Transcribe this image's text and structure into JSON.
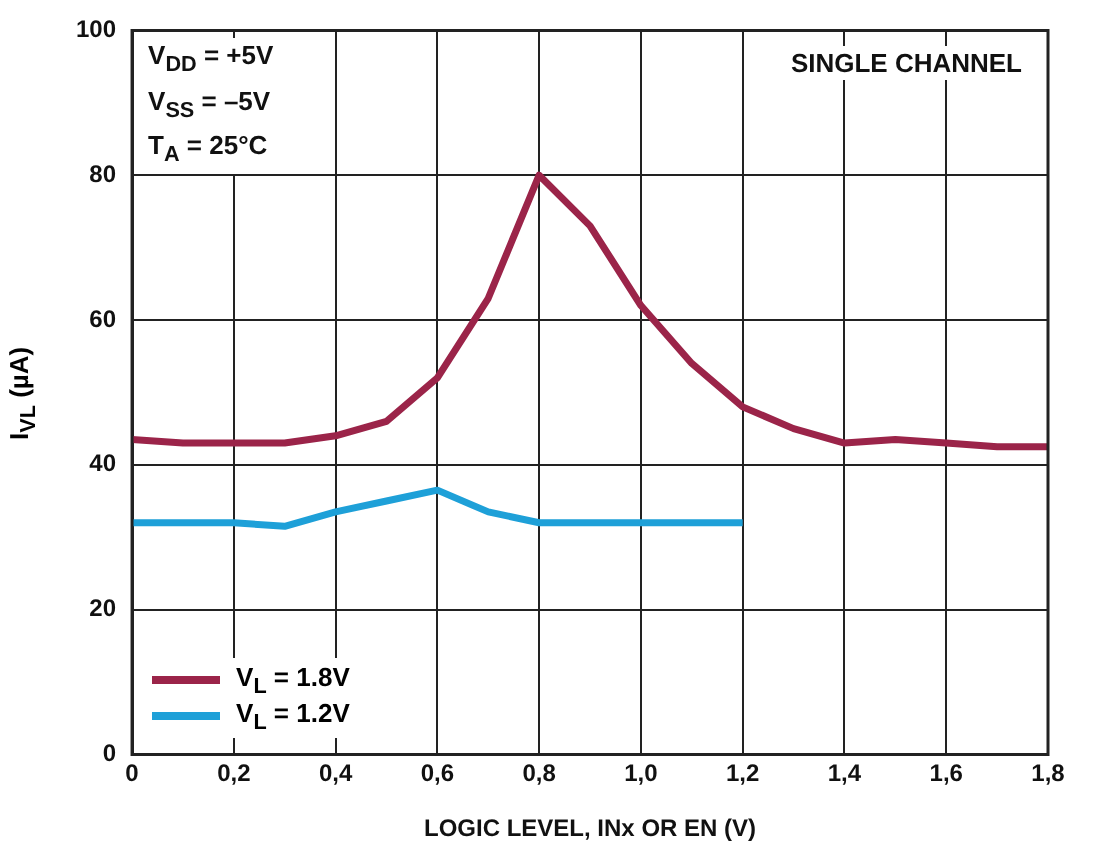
{
  "chart_data": {
    "type": "line",
    "xlabel": "LOGIC LEVEL, INx OR EN (V)",
    "ylabel": "I$_{VL}$ (µA)",
    "annotations": [
      "V$_{DD}$ = +5V\nV$_{SS}$ = –5V\nT$_{A}$ = 25°C",
      "SINGLE CHANNEL"
    ],
    "xlim": [
      0,
      1.8
    ],
    "xticks": [
      0,
      {
        "value": 0.2,
        "label": "0,2"
      },
      {
        "value": 0.4,
        "label": "0,4"
      },
      {
        "value": 0.6,
        "label": "0,6"
      },
      {
        "value": 0.8,
        "label": "0,8"
      },
      {
        "value": 1.0,
        "label": "1,0"
      },
      {
        "value": 1.2,
        "label": "1,2"
      },
      {
        "value": 1.4,
        "label": "1,4"
      },
      {
        "value": 1.6,
        "label": "1,6"
      },
      {
        "value": 1.8,
        "label": "1,8"
      }
    ],
    "ylim": [
      0,
      100
    ],
    "yticks": [
      0,
      20,
      40,
      60,
      80,
      100
    ],
    "grid": true,
    "legend": "bottom left",
    "marker": "none",
    "line_style": "solid",
    "series": [
      {
        "name": "V$_{L}$ = 1.8V",
        "color": "#9b2449",
        "x": [
          0,
          0.1,
          0.2,
          0.3,
          0.4,
          0.5,
          0.6,
          0.7,
          0.8,
          0.9,
          1.0,
          1.1,
          1.2,
          1.3,
          1.4,
          1.5,
          1.6,
          1.7,
          1.8
        ],
        "values": [
          43.5,
          43,
          43,
          43,
          44,
          46,
          52,
          63,
          80,
          73,
          62,
          54,
          48,
          45,
          43,
          43.5,
          43,
          42.5,
          42.5
        ]
      },
      {
        "name": "V$_{L}$ = 1.2V",
        "color": "#1ea0d8",
        "x": [
          0,
          0.1,
          0.2,
          0.3,
          0.4,
          0.5,
          0.6,
          0.7,
          0.8,
          0.9,
          1.0,
          1.1,
          1.2
        ],
        "values": [
          32,
          32,
          32,
          31.5,
          33.5,
          35,
          36.5,
          33.5,
          32,
          32,
          32,
          32,
          32
        ]
      }
    ]
  }
}
